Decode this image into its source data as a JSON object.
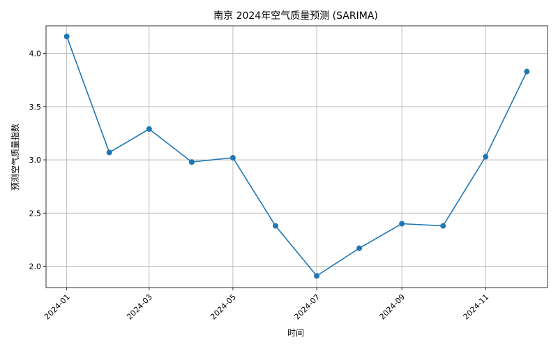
{
  "chart_data": {
    "type": "line",
    "title": "南京 2024年空气质量预测 (SARIMA)",
    "xlabel": "时间",
    "ylabel": "预测空气质量指数",
    "x": [
      "2024-01",
      "2024-02",
      "2024-03",
      "2024-04",
      "2024-05",
      "2024-06",
      "2024-07",
      "2024-08",
      "2024-09",
      "2024-10",
      "2024-11",
      "2024-12"
    ],
    "xticks": [
      "2024-01",
      "2024-03",
      "2024-05",
      "2024-07",
      "2024-09",
      "2024-11"
    ],
    "series": [
      {
        "values": [
          4.16,
          3.07,
          3.29,
          2.98,
          3.02,
          2.38,
          1.91,
          2.17,
          2.4,
          2.38,
          3.03,
          3.83
        ],
        "color": "#1f77b4"
      }
    ],
    "ylim": [
      1.8,
      4.26
    ],
    "yticks": [
      "2.0",
      "2.5",
      "3.0",
      "3.5",
      "4.0"
    ],
    "grid": true,
    "colors": {
      "line": "#1f77b4",
      "grid": "#b0b0b0",
      "axis": "#000000"
    }
  }
}
